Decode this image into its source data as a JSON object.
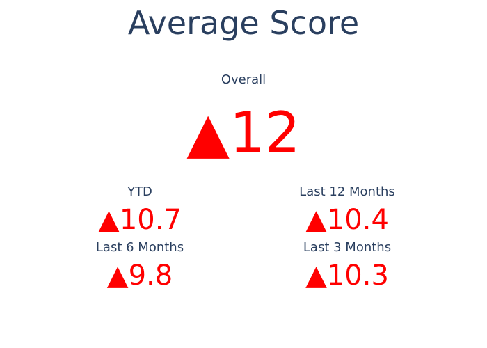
{
  "chart_data": {
    "type": "table",
    "title": "Average Score",
    "colors": {
      "title": "#2a3f5f",
      "label": "#2a3f5f",
      "value": "#ff0000"
    },
    "indicators": [
      {
        "label": "Overall",
        "arrow": "▲",
        "value": "12",
        "direction": "up"
      },
      {
        "label": "YTD",
        "arrow": "▲",
        "value": "10.7",
        "direction": "up"
      },
      {
        "label": "Last 12 Months",
        "arrow": "▲",
        "value": "10.4",
        "direction": "up"
      },
      {
        "label": "Last 6 Months",
        "arrow": "▲",
        "value": "9.8",
        "direction": "up"
      },
      {
        "label": "Last 3 Months",
        "arrow": "▲",
        "value": "10.3",
        "direction": "up"
      }
    ]
  }
}
